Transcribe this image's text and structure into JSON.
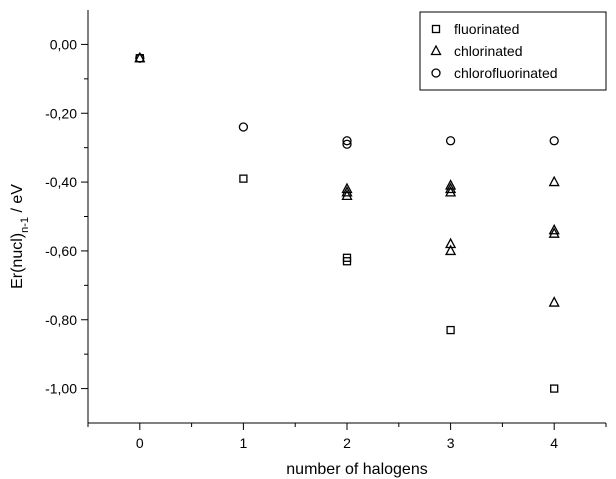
{
  "chart_data": {
    "type": "scatter",
    "xlabel": "number of halogens",
    "ylabel": {
      "main": "Er(nucl)",
      "subscript": "n-1",
      "unit": " / eV"
    },
    "xlim": [
      -0.5,
      4.5
    ],
    "ylim": [
      -1.1,
      0.1
    ],
    "xticks": [
      0,
      1,
      2,
      3,
      4
    ],
    "yticks": [
      0.0,
      -0.2,
      -0.4,
      -0.6,
      -0.8,
      -1.0
    ],
    "xtick_labels": [
      "0",
      "1",
      "2",
      "3",
      "4"
    ],
    "ytick_labels": [
      "0,00",
      "-0,20",
      "-0,40",
      "-0,60",
      "-0,80",
      "-1,00"
    ],
    "grid": false,
    "legend_position": "top-right",
    "series": [
      {
        "name": "fluorinated",
        "marker": "square",
        "points": [
          [
            0,
            -0.04
          ],
          [
            1,
            -0.39
          ],
          [
            2,
            -0.62
          ],
          [
            2,
            -0.63
          ],
          [
            3,
            -0.83
          ],
          [
            4,
            -1.0
          ]
        ]
      },
      {
        "name": "chlorinated",
        "marker": "triangle",
        "points": [
          [
            0,
            -0.04
          ],
          [
            2,
            -0.42
          ],
          [
            2,
            -0.43
          ],
          [
            2,
            -0.44
          ],
          [
            3,
            -0.41
          ],
          [
            3,
            -0.42
          ],
          [
            3,
            -0.43
          ],
          [
            3,
            -0.58
          ],
          [
            3,
            -0.6
          ],
          [
            4,
            -0.4
          ],
          [
            4,
            -0.54
          ],
          [
            4,
            -0.55
          ],
          [
            4,
            -0.75
          ]
        ]
      },
      {
        "name": "chlorofluorinated",
        "marker": "circle",
        "points": [
          [
            0,
            -0.04
          ],
          [
            1,
            -0.24
          ],
          [
            2,
            -0.28
          ],
          [
            2,
            -0.29
          ],
          [
            3,
            -0.28
          ],
          [
            4,
            -0.28
          ]
        ]
      }
    ]
  }
}
